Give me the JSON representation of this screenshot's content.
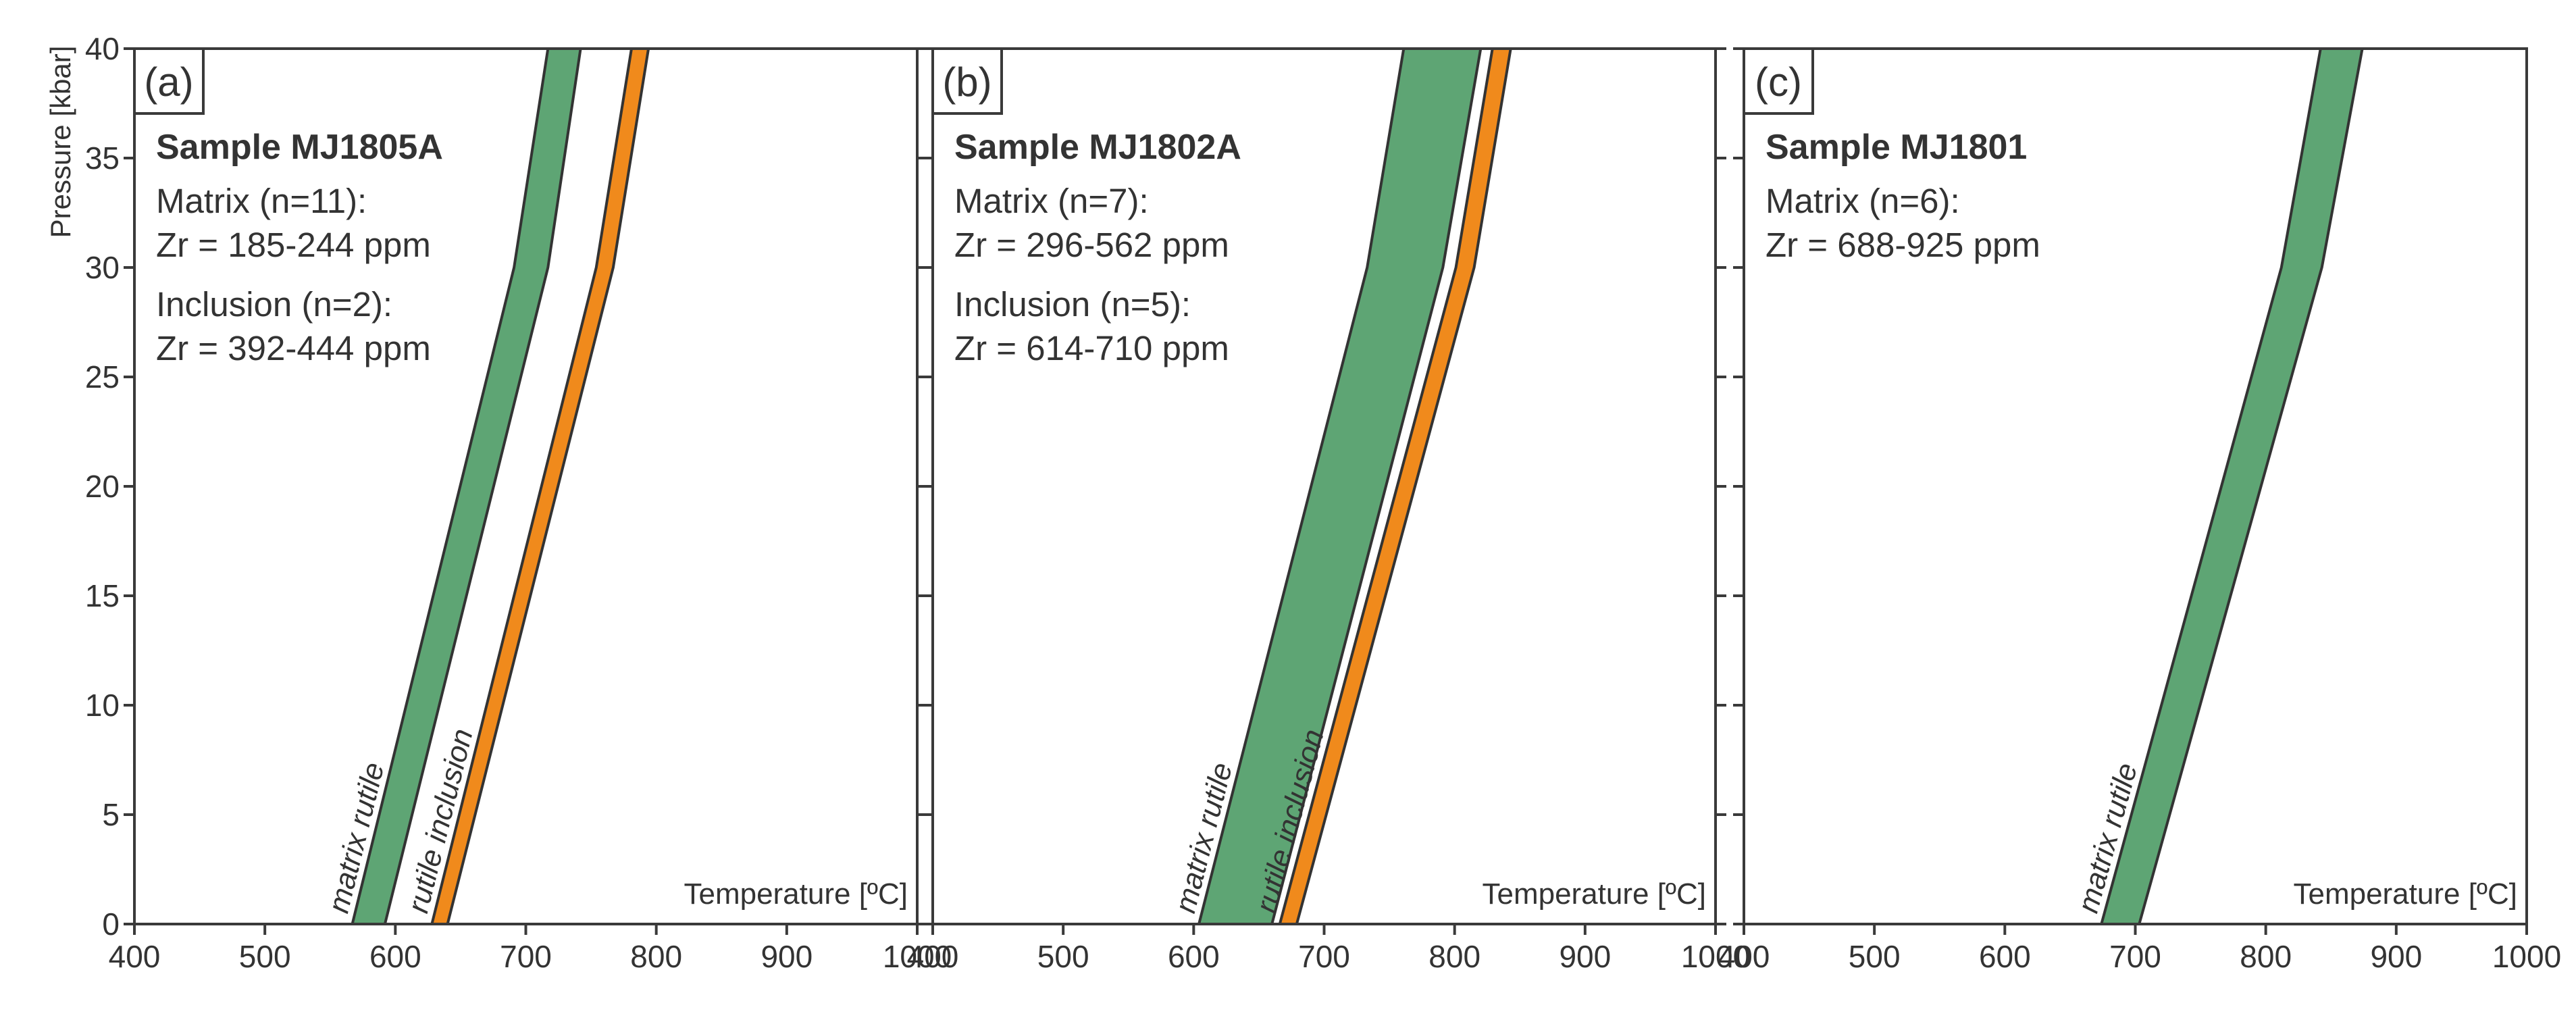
{
  "figure": {
    "y_axis_label": "Pressure [kbar]",
    "colors": {
      "matrix_rutile": "#5ea574",
      "rutile_inclusion": "#f08a1c",
      "outline": "#333333"
    }
  },
  "chart_data": [
    {
      "type": "area",
      "panel_label": "(a)",
      "sample_title": "Sample MJ1805A",
      "info_lines": [
        "Matrix (n=11):",
        "Zr = 185-244 ppm",
        "Inclusion (n=2):",
        "Zr = 392-444 ppm"
      ],
      "xlabel": "Temperature [ºC]",
      "xlim": [
        400,
        1000
      ],
      "ylim": [
        0,
        40
      ],
      "xticks": [
        400,
        500,
        600,
        700,
        800,
        900,
        1000
      ],
      "yticks": [
        0,
        5,
        10,
        15,
        20,
        25,
        30,
        35,
        40
      ],
      "series": [
        {
          "name": "matrix rutile",
          "color": "#5ea574",
          "low": [
            [
              567,
              0
            ],
            [
              691,
              30
            ],
            [
              717,
              40
            ]
          ],
          "high": [
            [
              592,
              0
            ],
            [
              717,
              30
            ],
            [
              742,
              40
            ]
          ]
        },
        {
          "name": "rutile inclusion",
          "color": "#f08a1c",
          "low": [
            [
              628,
              0
            ],
            [
              754,
              30
            ],
            [
              781,
              40
            ]
          ],
          "high": [
            [
              640,
              0
            ],
            [
              767,
              30
            ],
            [
              794,
              40
            ]
          ]
        }
      ]
    },
    {
      "type": "area",
      "panel_label": "(b)",
      "sample_title": "Sample MJ1802A",
      "info_lines": [
        "Matrix (n=7):",
        "Zr = 296-562 ppm",
        "Inclusion (n=5):",
        "Zr = 614-710 ppm"
      ],
      "xlabel": "Temperature [ºC]",
      "xlim": [
        400,
        1000
      ],
      "ylim": [
        0,
        40
      ],
      "xticks": [
        400,
        500,
        600,
        700,
        800,
        900,
        1000
      ],
      "yticks": [
        0,
        5,
        10,
        15,
        20,
        25,
        30,
        35,
        40
      ],
      "series": [
        {
          "name": "matrix rutile",
          "color": "#5ea574",
          "low": [
            [
              604,
              0
            ],
            [
              733,
              30
            ],
            [
              761,
              40
            ]
          ],
          "high": [
            [
              660,
              0
            ],
            [
              791,
              30
            ],
            [
              820,
              40
            ]
          ]
        },
        {
          "name": "rutile inclusion",
          "color": "#f08a1c",
          "low": [
            [
              666,
              0
            ],
            [
              801,
              30
            ],
            [
              829,
              40
            ]
          ],
          "high": [
            [
              679,
              0
            ],
            [
              815,
              30
            ],
            [
              843,
              40
            ]
          ]
        }
      ]
    },
    {
      "type": "area",
      "panel_label": "(c)",
      "sample_title": "Sample MJ1801",
      "info_lines": [
        "Matrix (n=6):",
        "Zr = 688-925 ppm"
      ],
      "xlabel": "Temperature [ºC]",
      "xlim": [
        400,
        1000
      ],
      "ylim": [
        0,
        40
      ],
      "xticks": [
        400,
        500,
        600,
        700,
        800,
        900,
        1000
      ],
      "yticks": [
        0,
        5,
        10,
        15,
        20,
        25,
        30,
        35,
        40
      ],
      "series": [
        {
          "name": "matrix rutile",
          "color": "#5ea574",
          "low": [
            [
              674,
              0
            ],
            [
              812,
              30
            ],
            [
              842,
              40
            ]
          ],
          "high": [
            [
              703,
              0
            ],
            [
              843,
              30
            ],
            [
              874,
              40
            ]
          ]
        }
      ]
    }
  ]
}
